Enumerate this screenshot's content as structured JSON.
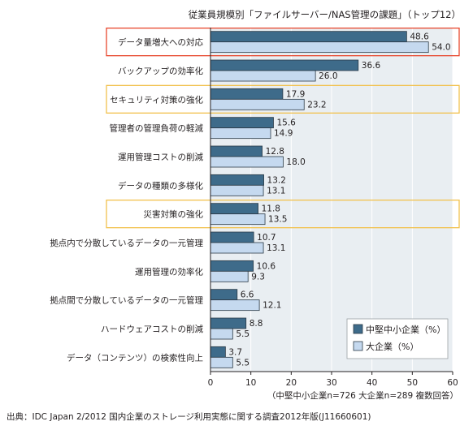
{
  "chart_data": {
    "type": "bar",
    "orientation": "horizontal",
    "title": "従業員規模別「ファイルサーバー/NAS管理の課題」（トップ12）",
    "categories": [
      "データ量増大への対応",
      "バックアップの効率化",
      "セキュリティ対策の強化",
      "管理者の管理負荷の軽減",
      "運用管理コストの削減",
      "データの種類の多様化",
      "災害対策の強化",
      "拠点内で分散しているデータの一元管理",
      "運用管理の効率化",
      "拠点間で分散しているデータの一元管理",
      "ハードウェアコストの削減",
      "データ（コンテンツ）の検索性向上"
    ],
    "series": [
      {
        "name": "中堅中小企業（%）",
        "color": "#3e6b8a",
        "values": [
          48.6,
          36.6,
          17.9,
          15.6,
          12.8,
          13.2,
          11.8,
          10.7,
          10.6,
          6.6,
          8.8,
          3.7
        ]
      },
      {
        "name": "大企業（%）",
        "color": "#c5d9ef",
        "values": [
          54.0,
          26.0,
          23.2,
          14.9,
          18.0,
          13.1,
          13.5,
          13.1,
          9.3,
          12.1,
          5.5,
          5.5
        ]
      }
    ],
    "xlim": [
      0,
      60
    ],
    "xticks": [
      "0",
      "10",
      "20",
      "30",
      "40",
      "50",
      "60"
    ],
    "highlighted": [
      {
        "index": 0,
        "color": "#e8472e"
      },
      {
        "index": 2,
        "color": "#f2c14e"
      },
      {
        "index": 6,
        "color": "#f2c14e"
      }
    ],
    "note": "（中堅中小企業n=726 大企業n=289 複数回答）",
    "source": "出典：IDC Japan 2/2012 国内企業のストレージ利用実態に関する調査2012年版(J11660601)",
    "plot_background": "#e9eef2",
    "legend_position": "bottom-right"
  }
}
